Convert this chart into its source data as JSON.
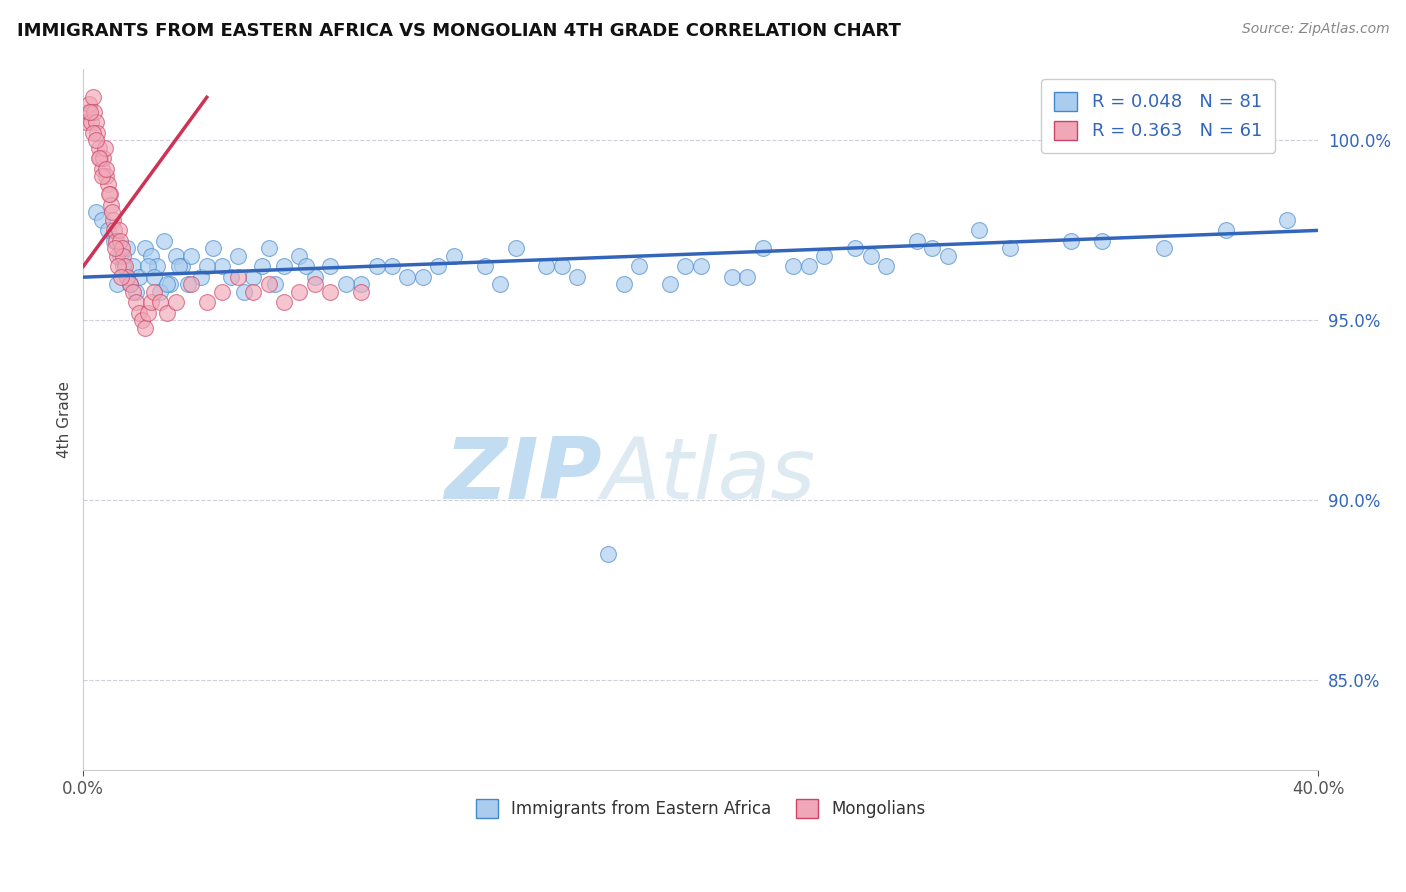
{
  "title": "IMMIGRANTS FROM EASTERN AFRICA VS MONGOLIAN 4TH GRADE CORRELATION CHART",
  "source": "Source: ZipAtlas.com",
  "ylabel": "4th Grade",
  "xlim": [
    0.0,
    40.0
  ],
  "ylim": [
    82.5,
    102.0
  ],
  "yticks": [
    85.0,
    90.0,
    95.0,
    100.0
  ],
  "ytick_labels": [
    "85.0%",
    "90.0%",
    "95.0%",
    "100.0%"
  ],
  "xtick_vals": [
    0.0,
    40.0
  ],
  "xtick_labels": [
    "0.0%",
    "40.0%"
  ],
  "legend_r_blue": "R = 0.048",
  "legend_n_blue": "N = 81",
  "legend_r_pink": "R = 0.363",
  "legend_n_pink": "N = 61",
  "legend_label_blue": "Immigrants from Eastern Africa",
  "legend_label_pink": "Mongolians",
  "blue_face": "#aaccee",
  "blue_edge": "#4488cc",
  "pink_face": "#f0a8b8",
  "pink_edge": "#cc4466",
  "blue_line": "#3366bb",
  "pink_line": "#cc3355",
  "watermark": "ZIPAtlas",
  "watermark_color": "#cce4f5",
  "blue_x": [
    0.4,
    0.6,
    0.8,
    1.0,
    1.2,
    1.4,
    1.6,
    1.8,
    2.0,
    2.2,
    2.4,
    2.6,
    2.8,
    3.0,
    3.2,
    3.5,
    3.8,
    4.2,
    4.5,
    5.0,
    5.5,
    6.0,
    6.5,
    7.0,
    7.5,
    8.0,
    9.0,
    10.0,
    11.0,
    12.0,
    13.0,
    14.0,
    15.0,
    16.0,
    17.0,
    18.0,
    19.0,
    20.0,
    21.0,
    22.0,
    23.0,
    24.0,
    25.0,
    26.0,
    27.0,
    28.0,
    29.0,
    30.0,
    32.0,
    35.0,
    37.0,
    39.0,
    1.1,
    1.3,
    1.5,
    1.7,
    2.1,
    2.3,
    2.5,
    2.7,
    3.1,
    3.4,
    4.0,
    4.8,
    5.2,
    5.8,
    6.2,
    7.2,
    8.5,
    9.5,
    10.5,
    11.5,
    13.5,
    15.5,
    17.5,
    19.5,
    21.5,
    23.5,
    25.5,
    27.5,
    33.0
  ],
  "blue_y": [
    98.0,
    97.8,
    97.5,
    97.2,
    96.8,
    97.0,
    96.5,
    96.2,
    97.0,
    96.8,
    96.5,
    97.2,
    96.0,
    96.8,
    96.5,
    96.8,
    96.2,
    97.0,
    96.5,
    96.8,
    96.2,
    97.0,
    96.5,
    96.8,
    96.2,
    96.5,
    96.0,
    96.5,
    96.2,
    96.8,
    96.5,
    97.0,
    96.5,
    96.2,
    88.5,
    96.5,
    96.0,
    96.5,
    96.2,
    97.0,
    96.5,
    96.8,
    97.0,
    96.5,
    97.2,
    96.8,
    97.5,
    97.0,
    97.2,
    97.0,
    97.5,
    97.8,
    96.0,
    96.5,
    96.0,
    95.8,
    96.5,
    96.2,
    95.8,
    96.0,
    96.5,
    96.0,
    96.5,
    96.2,
    95.8,
    96.5,
    96.0,
    96.5,
    96.0,
    96.5,
    96.2,
    96.5,
    96.0,
    96.5,
    96.0,
    96.5,
    96.2,
    96.5,
    96.8,
    97.0,
    97.2
  ],
  "pink_x": [
    0.1,
    0.15,
    0.2,
    0.25,
    0.3,
    0.35,
    0.4,
    0.45,
    0.5,
    0.55,
    0.6,
    0.65,
    0.7,
    0.75,
    0.8,
    0.85,
    0.9,
    0.95,
    1.0,
    1.05,
    1.1,
    1.15,
    1.2,
    1.25,
    1.3,
    1.35,
    1.4,
    1.5,
    1.6,
    1.7,
    1.8,
    1.9,
    2.0,
    2.1,
    2.2,
    2.3,
    2.5,
    2.7,
    3.0,
    3.5,
    4.0,
    4.5,
    5.0,
    5.5,
    6.0,
    6.5,
    7.0,
    7.5,
    8.0,
    9.0,
    0.22,
    0.32,
    0.42,
    0.52,
    0.62,
    0.72,
    0.82,
    0.92,
    1.02,
    1.12,
    1.22
  ],
  "pink_y": [
    100.5,
    100.8,
    101.0,
    100.5,
    101.2,
    100.8,
    100.5,
    100.2,
    99.8,
    99.5,
    99.2,
    99.5,
    99.8,
    99.0,
    98.8,
    98.5,
    98.2,
    97.8,
    97.5,
    97.2,
    96.8,
    97.5,
    97.2,
    97.0,
    96.8,
    96.5,
    96.2,
    96.0,
    95.8,
    95.5,
    95.2,
    95.0,
    94.8,
    95.2,
    95.5,
    95.8,
    95.5,
    95.2,
    95.5,
    96.0,
    95.5,
    95.8,
    96.2,
    95.8,
    96.0,
    95.5,
    95.8,
    96.0,
    95.8,
    95.8,
    100.8,
    100.2,
    100.0,
    99.5,
    99.0,
    99.2,
    98.5,
    98.0,
    97.0,
    96.5,
    96.2
  ],
  "pink_line_x0": 0.0,
  "pink_line_y0": 96.5,
  "pink_line_x1": 4.0,
  "pink_line_y1": 101.2,
  "blue_line_x0": 0.0,
  "blue_line_y0": 96.2,
  "blue_line_x1": 40.0,
  "blue_line_y1": 97.5
}
